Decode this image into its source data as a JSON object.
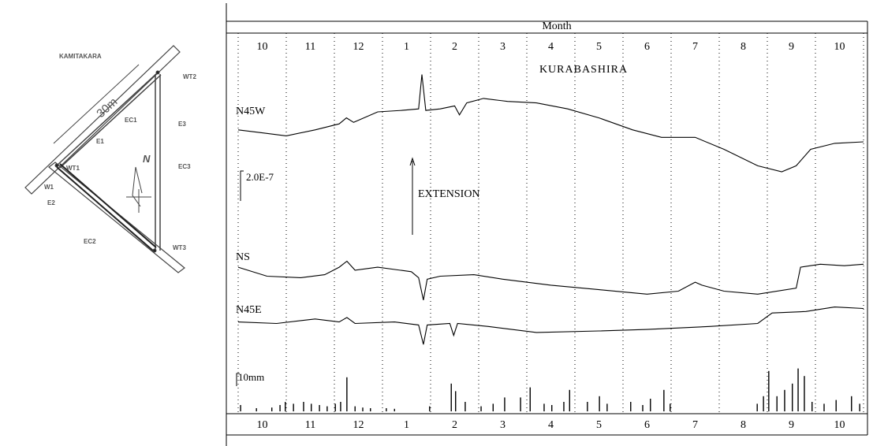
{
  "diagram": {
    "title": "KAMITAKARA",
    "length": "30m",
    "labels": {
      "ec1": "EC1",
      "e1": "E1",
      "wt1": "WT1",
      "wt2": "WT2",
      "e3": "E3",
      "ec3": "EC3",
      "w1": "W1",
      "e2": "E2",
      "ec2": "EC2",
      "wt3": "WT3",
      "north": "N"
    }
  },
  "chart_data": [
    {
      "type": "line",
      "title": "KURABASHIRA",
      "xlabel": "Month",
      "xlim": [
        0,
        13
      ],
      "xticks": [
        0,
        1,
        2,
        3,
        4,
        5,
        6,
        7,
        8,
        9,
        10,
        11,
        12,
        13
      ],
      "grid": true,
      "month_labels": [
        {
          "value": 0.5,
          "label": "10"
        },
        {
          "value": 1.5,
          "label": "11"
        },
        {
          "value": 2.5,
          "label": "12"
        },
        {
          "value": 3.5,
          "label": "1"
        },
        {
          "value": 4.5,
          "label": "2"
        },
        {
          "value": 5.5,
          "label": "3"
        },
        {
          "value": 6.5,
          "label": "4"
        },
        {
          "value": 7.5,
          "label": "5"
        },
        {
          "value": 8.5,
          "label": "6"
        },
        {
          "value": 9.5,
          "label": "7"
        },
        {
          "value": 10.5,
          "label": "8"
        },
        {
          "value": 11.5,
          "label": "9"
        },
        {
          "value": 12.5,
          "label": "10"
        }
      ],
      "scale_bar": {
        "value": 2,
        "label": "2.0E-7"
      },
      "annotation": "EXTENSION",
      "series": [
        {
          "name": "N45W",
          "color": "#000000",
          "x": [
            0,
            0.5,
            1,
            1.6,
            2.1,
            2.25,
            2.4,
            2.9,
            3.4,
            3.75,
            3.82,
            3.9,
            4.2,
            4.5,
            4.6,
            4.75,
            5.1,
            5.6,
            6.2,
            6.85,
            7.5,
            8.2,
            8.8,
            9.5,
            10.1,
            10.8,
            11.3,
            11.6,
            11.9,
            12.4,
            13
          ],
          "values": [
            0.8,
            0.6,
            0.4,
            0.8,
            1.2,
            1.6,
            1.3,
            2.0,
            2.1,
            2.2,
            4.5,
            2.1,
            2.2,
            2.4,
            1.8,
            2.6,
            2.9,
            2.7,
            2.6,
            2.2,
            1.6,
            0.8,
            0.3,
            0.3,
            -0.5,
            -1.6,
            -2.0,
            -1.6,
            -0.5,
            -0.1,
            0
          ]
        },
        {
          "name": "NS",
          "color": "#000000",
          "x": [
            0,
            0.6,
            1.3,
            1.8,
            2.1,
            2.26,
            2.43,
            2.9,
            3.6,
            3.75,
            3.85,
            3.93,
            4.2,
            4.9,
            5.5,
            6.5,
            7.5,
            8.5,
            9.15,
            9.5,
            9.64,
            10.1,
            10.8,
            11.6,
            11.69,
            12.1,
            12.6,
            13
          ],
          "values": [
            1.1,
            0.5,
            0.4,
            0.6,
            1.1,
            1.5,
            0.9,
            1.1,
            0.8,
            0.4,
            -1.1,
            0.3,
            0.5,
            0.6,
            0.3,
            -0.1,
            -0.4,
            -0.7,
            -0.5,
            0.1,
            -0.1,
            -0.5,
            -0.7,
            -0.3,
            1.1,
            1.3,
            1.2,
            1.3
          ]
        },
        {
          "name": "N45E",
          "color": "#000000",
          "x": [
            0,
            0.8,
            1.6,
            2.1,
            2.26,
            2.43,
            3.25,
            3.75,
            3.85,
            3.93,
            4.4,
            4.48,
            4.56,
            5.2,
            6.2,
            7.5,
            8.5,
            9.8,
            10.8,
            11.1,
            11.8,
            12.4,
            13
          ],
          "values": [
            0.6,
            0.5,
            0.8,
            0.6,
            0.9,
            0.5,
            0.6,
            0.4,
            -0.9,
            0.4,
            0.5,
            -0.3,
            0.5,
            0.3,
            -0.1,
            0,
            0.1,
            0.3,
            0.5,
            1.2,
            1.3,
            1.6,
            1.5
          ]
        }
      ]
    },
    {
      "type": "bar",
      "xlim": [
        0,
        13
      ],
      "color": "#000000",
      "scale_bar": {
        "value": 10,
        "label": "10mm"
      },
      "x": [
        0.05,
        0.38,
        0.7,
        0.87,
        0.98,
        1.15,
        1.36,
        1.52,
        1.69,
        1.85,
        2.02,
        2.13,
        2.26,
        2.43,
        2.59,
        2.75,
        3.08,
        3.25,
        3.98,
        4.43,
        4.52,
        4.72,
        5.05,
        5.3,
        5.54,
        5.87,
        6.07,
        6.36,
        6.52,
        6.77,
        6.89,
        7.26,
        7.51,
        7.67,
        8.16,
        8.41,
        8.57,
        8.85,
        8.98,
        10.79,
        10.92,
        11.03,
        11.2,
        11.36,
        11.52,
        11.64,
        11.77,
        11.93,
        12.18,
        12.43,
        12.75,
        12.92
      ],
      "values": [
        5,
        2.5,
        3,
        5,
        7.5,
        6,
        7.5,
        6,
        5,
        4,
        6,
        7.5,
        27,
        4,
        3,
        2.5,
        2.5,
        2,
        4,
        22,
        16,
        7.5,
        4,
        6,
        11,
        11,
        19,
        6,
        5,
        7.5,
        17,
        7.5,
        12,
        6,
        7.5,
        5,
        10,
        17,
        6,
        6,
        12,
        32,
        12,
        17,
        22,
        34,
        28,
        7.5,
        6,
        9,
        12,
        6
      ]
    }
  ]
}
